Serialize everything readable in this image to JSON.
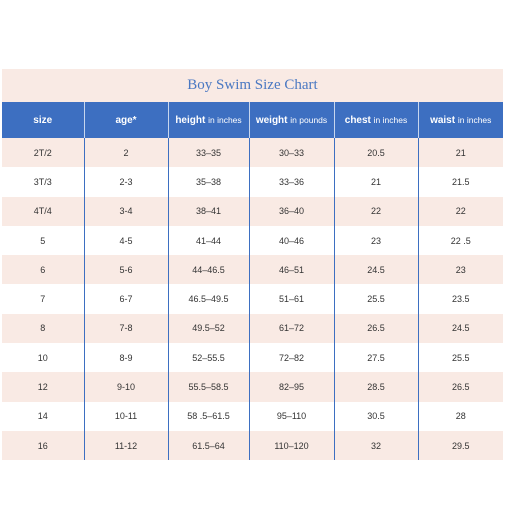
{
  "title": "Boy Swim Size Chart",
  "headers": [
    {
      "label": "size",
      "unit": ""
    },
    {
      "label": "age*",
      "unit": ""
    },
    {
      "label": "height",
      "unit": "in inches"
    },
    {
      "label": "weight",
      "unit": "in pounds"
    },
    {
      "label": "chest",
      "unit": "in inches"
    },
    {
      "label": "waist",
      "unit": "in inches"
    }
  ],
  "rows": [
    [
      "2T/2",
      "2",
      "33–35",
      "30–33",
      "20.5",
      "21"
    ],
    [
      "3T/3",
      "2-3",
      "35–38",
      "33–36",
      "21",
      "21.5"
    ],
    [
      "4T/4",
      "3-4",
      "38–41",
      "36–40",
      "22",
      "22"
    ],
    [
      "5",
      "4-5",
      "41–44",
      "40–46",
      "23",
      "22 .5"
    ],
    [
      "6",
      "5-6",
      "44–46.5",
      "46–51",
      "24.5",
      "23"
    ],
    [
      "7",
      "6-7",
      "46.5–49.5",
      "51–61",
      "25.5",
      "23.5"
    ],
    [
      "8",
      "7-8",
      "49.5–52",
      "61–72",
      "26.5",
      "24.5"
    ],
    [
      "10",
      "8-9",
      "52–55.5",
      "72–82",
      "27.5",
      "25.5"
    ],
    [
      "12",
      "9-10",
      "55.5–58.5",
      "82–95",
      "28.5",
      "26.5"
    ],
    [
      "14",
      "10-11",
      "58 .5–61.5",
      "95–110",
      "30.5",
      "28"
    ],
    [
      "16",
      "11-12",
      "61.5–64",
      "110–120",
      "32",
      "29.5"
    ]
  ],
  "colors": {
    "header_bg": "#3d6fc1",
    "title_text": "#4a78c2",
    "shade_row": "#f9eae4"
  }
}
